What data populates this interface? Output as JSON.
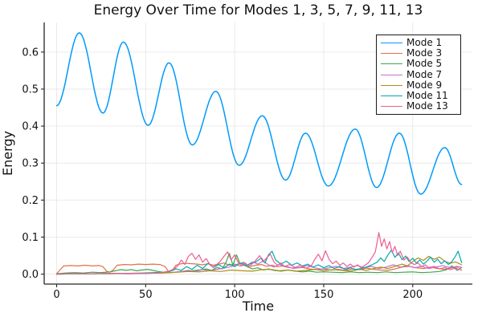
{
  "chart_data": {
    "type": "line",
    "title": "Energy Over Time for Modes 1, 3, 5, 7, 9, 11, 13",
    "xlabel": "Time",
    "ylabel": "Energy",
    "xlim": [
      -7,
      233.5
    ],
    "ylim": [
      -0.027,
      0.68
    ],
    "xticks": [
      0,
      50,
      100,
      150,
      200
    ],
    "xticklabels": [
      "0",
      "50",
      "100",
      "150",
      "200"
    ],
    "yticks": [
      0.0,
      0.1,
      0.2,
      0.3,
      0.4,
      0.5,
      0.6
    ],
    "yticklabels": [
      "0.0",
      "0.1",
      "0.2",
      "0.3",
      "0.4",
      "0.5",
      "0.6"
    ],
    "grid": true,
    "grid_color": "#e8e8e8",
    "axis_color": "#262626",
    "legend_position": "top-right",
    "series": [
      {
        "name": "Mode 1",
        "color": "#009AFA",
        "interp": "cosine",
        "line_width": 1.5,
        "x": [
          0,
          12.7,
          26,
          37.5,
          51.4,
          63.1,
          76.2,
          89.4,
          102.5,
          115.5,
          128.6,
          139.8,
          152.6,
          167.7,
          179.7,
          192.5,
          204.5,
          218,
          227.5
        ],
        "y": [
          0.455,
          0.652,
          0.435,
          0.627,
          0.402,
          0.571,
          0.349,
          0.494,
          0.294,
          0.428,
          0.254,
          0.381,
          0.238,
          0.392,
          0.234,
          0.381,
          0.216,
          0.342,
          0.242
        ]
      },
      {
        "name": "Mode 3",
        "color": "#E36F47",
        "interp": "linear",
        "line_width": 1.2,
        "x": [
          0,
          2,
          4,
          8,
          12,
          16,
          20,
          24,
          26,
          28,
          30,
          32,
          34,
          38,
          42,
          46,
          50,
          54,
          58,
          61,
          63,
          65,
          67,
          70,
          73,
          76,
          79,
          82,
          85,
          88,
          91,
          94,
          97,
          100,
          103,
          106,
          109,
          112,
          115,
          118,
          121,
          124,
          127,
          130,
          134,
          138,
          142,
          146,
          150,
          154,
          158,
          162,
          166,
          170,
          174,
          178,
          182,
          186,
          190,
          194,
          198,
          202,
          206,
          210,
          214,
          218,
          222,
          226,
          227.5
        ],
        "y": [
          0.001,
          0.012,
          0.022,
          0.023,
          0.022,
          0.024,
          0.022,
          0.023,
          0.02,
          0.008,
          0.005,
          0.012,
          0.024,
          0.026,
          0.025,
          0.027,
          0.026,
          0.027,
          0.026,
          0.02,
          0.006,
          0.01,
          0.024,
          0.028,
          0.029,
          0.028,
          0.027,
          0.025,
          0.028,
          0.024,
          0.027,
          0.03,
          0.024,
          0.027,
          0.022,
          0.025,
          0.021,
          0.024,
          0.026,
          0.021,
          0.024,
          0.02,
          0.022,
          0.018,
          0.016,
          0.018,
          0.014,
          0.012,
          0.014,
          0.011,
          0.013,
          0.01,
          0.014,
          0.012,
          0.016,
          0.013,
          0.011,
          0.01,
          0.014,
          0.019,
          0.021,
          0.017,
          0.015,
          0.019,
          0.015,
          0.013,
          0.017,
          0.019,
          0.018
        ]
      },
      {
        "name": "Mode 5",
        "color": "#3EA44E",
        "interp": "linear",
        "line_width": 1.2,
        "x": [
          0,
          5,
          10,
          15,
          20,
          25,
          30,
          33,
          36,
          39,
          42,
          45,
          48,
          51,
          54,
          57,
          60,
          64,
          68,
          72,
          76,
          80,
          84,
          87,
          90,
          93,
          95,
          97,
          99,
          101,
          103,
          105,
          107,
          110,
          113,
          116,
          119,
          122,
          126,
          130,
          134,
          138,
          142,
          146,
          150,
          155,
          160,
          165,
          170,
          175,
          180,
          185,
          190,
          195,
          200,
          205,
          210,
          215,
          219,
          222,
          225,
          227.5
        ],
        "y": [
          0.001,
          0.003,
          0.004,
          0.003,
          0.005,
          0.004,
          0.006,
          0.009,
          0.012,
          0.01,
          0.012,
          0.009,
          0.011,
          0.013,
          0.01,
          0.007,
          0.005,
          0.004,
          0.006,
          0.008,
          0.009,
          0.011,
          0.014,
          0.01,
          0.018,
          0.014,
          0.03,
          0.056,
          0.024,
          0.052,
          0.028,
          0.032,
          0.02,
          0.014,
          0.017,
          0.011,
          0.014,
          0.01,
          0.008,
          0.011,
          0.008,
          0.006,
          0.008,
          0.005,
          0.006,
          0.005,
          0.004,
          0.006,
          0.004,
          0.005,
          0.004,
          0.006,
          0.004,
          0.005,
          0.006,
          0.004,
          0.005,
          0.007,
          0.012,
          0.022,
          0.01,
          0.018
        ]
      },
      {
        "name": "Mode 7",
        "color": "#C371D2",
        "interp": "linear",
        "line_width": 1.2,
        "x": [
          0,
          10,
          20,
          30,
          40,
          50,
          58,
          64,
          70,
          74,
          78,
          82,
          86,
          90,
          94,
          98,
          101,
          104,
          107,
          110,
          113,
          116,
          119,
          122,
          125,
          129,
          133,
          137,
          141,
          145,
          149,
          153,
          157,
          161,
          165,
          169,
          173,
          177,
          181,
          185,
          189,
          193,
          197,
          201,
          205,
          209,
          213,
          217,
          221,
          225,
          227.5
        ],
        "y": [
          0.0,
          0.001,
          0.001,
          0.002,
          0.001,
          0.002,
          0.003,
          0.004,
          0.007,
          0.01,
          0.007,
          0.012,
          0.009,
          0.013,
          0.016,
          0.02,
          0.026,
          0.03,
          0.024,
          0.033,
          0.027,
          0.035,
          0.025,
          0.019,
          0.026,
          0.021,
          0.015,
          0.019,
          0.023,
          0.017,
          0.013,
          0.017,
          0.021,
          0.015,
          0.019,
          0.023,
          0.017,
          0.021,
          0.015,
          0.019,
          0.025,
          0.019,
          0.023,
          0.017,
          0.021,
          0.015,
          0.019,
          0.023,
          0.017,
          0.021,
          0.018
        ]
      },
      {
        "name": "Mode 9",
        "color": "#AC8E18",
        "interp": "linear",
        "line_width": 1.2,
        "x": [
          0,
          10,
          20,
          30,
          40,
          50,
          60,
          68,
          74,
          80,
          86,
          92,
          98,
          104,
          110,
          115,
          120,
          125,
          130,
          135,
          140,
          145,
          150,
          155,
          160,
          165,
          170,
          174,
          178,
          182,
          186,
          190,
          194,
          197,
          200,
          203,
          206,
          209,
          212,
          215,
          218,
          221,
          224,
          227.5
        ],
        "y": [
          0.0,
          0.001,
          0.001,
          0.001,
          0.002,
          0.002,
          0.003,
          0.005,
          0.007,
          0.006,
          0.009,
          0.007,
          0.011,
          0.009,
          0.008,
          0.012,
          0.013,
          0.009,
          0.011,
          0.008,
          0.01,
          0.013,
          0.009,
          0.012,
          0.01,
          0.008,
          0.013,
          0.01,
          0.015,
          0.019,
          0.015,
          0.021,
          0.027,
          0.022,
          0.034,
          0.044,
          0.037,
          0.048,
          0.04,
          0.046,
          0.035,
          0.029,
          0.033,
          0.025
        ]
      },
      {
        "name": "Mode 11",
        "color": "#00AAAE",
        "interp": "linear",
        "line_width": 1.2,
        "x": [
          0,
          10,
          20,
          30,
          40,
          48,
          54,
          60,
          64,
          67,
          70,
          73,
          76,
          79,
          82,
          85,
          88,
          91,
          94,
          97,
          100,
          103,
          106,
          109,
          112,
          115,
          117,
          119,
          121,
          123,
          126,
          129,
          132,
          135,
          138,
          141,
          144,
          147,
          150,
          153,
          156,
          159,
          162,
          165,
          168,
          171,
          174,
          177,
          180,
          182,
          184,
          186,
          188,
          190,
          192,
          194,
          196,
          198,
          200,
          202,
          204,
          206,
          208,
          210,
          212,
          214,
          216,
          218,
          220,
          222,
          224,
          225.5,
          227.5
        ],
        "y": [
          0.0,
          0.001,
          0.001,
          0.002,
          0.002,
          0.003,
          0.004,
          0.005,
          0.008,
          0.014,
          0.01,
          0.02,
          0.013,
          0.024,
          0.015,
          0.029,
          0.018,
          0.026,
          0.017,
          0.027,
          0.02,
          0.03,
          0.022,
          0.028,
          0.033,
          0.044,
          0.03,
          0.052,
          0.062,
          0.038,
          0.027,
          0.035,
          0.024,
          0.03,
          0.022,
          0.027,
          0.019,
          0.025,
          0.017,
          0.023,
          0.015,
          0.021,
          0.013,
          0.017,
          0.012,
          0.015,
          0.019,
          0.025,
          0.032,
          0.044,
          0.034,
          0.051,
          0.065,
          0.045,
          0.057,
          0.039,
          0.049,
          0.034,
          0.043,
          0.03,
          0.038,
          0.027,
          0.035,
          0.046,
          0.032,
          0.04,
          0.028,
          0.036,
          0.026,
          0.034,
          0.048,
          0.062,
          0.031
        ]
      },
      {
        "name": "Mode 13",
        "color": "#ED5E93",
        "interp": "linear",
        "line_width": 1.2,
        "x": [
          0,
          10,
          20,
          30,
          40,
          50,
          56,
          60,
          63,
          66,
          68,
          70,
          72,
          74,
          76,
          78,
          80,
          82,
          84,
          86,
          88,
          90,
          92,
          94,
          96,
          98,
          100,
          102,
          104,
          106,
          108,
          110,
          112,
          114,
          116,
          118,
          120,
          122,
          124,
          126,
          128,
          131,
          134,
          137,
          140,
          143,
          145,
          147,
          149,
          151,
          153,
          155,
          157,
          159,
          161,
          163,
          165,
          167,
          169,
          171,
          173,
          175,
          177,
          179,
          181,
          182.5,
          184,
          185.5,
          187,
          188.5,
          190,
          191.5,
          193,
          195,
          197,
          199,
          201,
          203,
          205,
          207,
          209,
          212,
          215,
          218,
          221,
          224,
          227.5
        ],
        "y": [
          0.0,
          0.001,
          0.001,
          0.002,
          0.002,
          0.002,
          0.003,
          0.005,
          0.008,
          0.014,
          0.022,
          0.038,
          0.026,
          0.048,
          0.056,
          0.04,
          0.052,
          0.032,
          0.042,
          0.026,
          0.019,
          0.026,
          0.035,
          0.048,
          0.06,
          0.038,
          0.052,
          0.031,
          0.022,
          0.03,
          0.02,
          0.028,
          0.038,
          0.05,
          0.033,
          0.044,
          0.054,
          0.033,
          0.024,
          0.03,
          0.02,
          0.026,
          0.018,
          0.024,
          0.016,
          0.022,
          0.04,
          0.054,
          0.036,
          0.063,
          0.04,
          0.028,
          0.035,
          0.024,
          0.03,
          0.021,
          0.027,
          0.019,
          0.025,
          0.017,
          0.023,
          0.03,
          0.044,
          0.06,
          0.112,
          0.075,
          0.095,
          0.068,
          0.088,
          0.058,
          0.075,
          0.05,
          0.062,
          0.038,
          0.046,
          0.03,
          0.026,
          0.03,
          0.02,
          0.025,
          0.017,
          0.021,
          0.014,
          0.018,
          0.012,
          0.016,
          0.011
        ]
      }
    ]
  }
}
